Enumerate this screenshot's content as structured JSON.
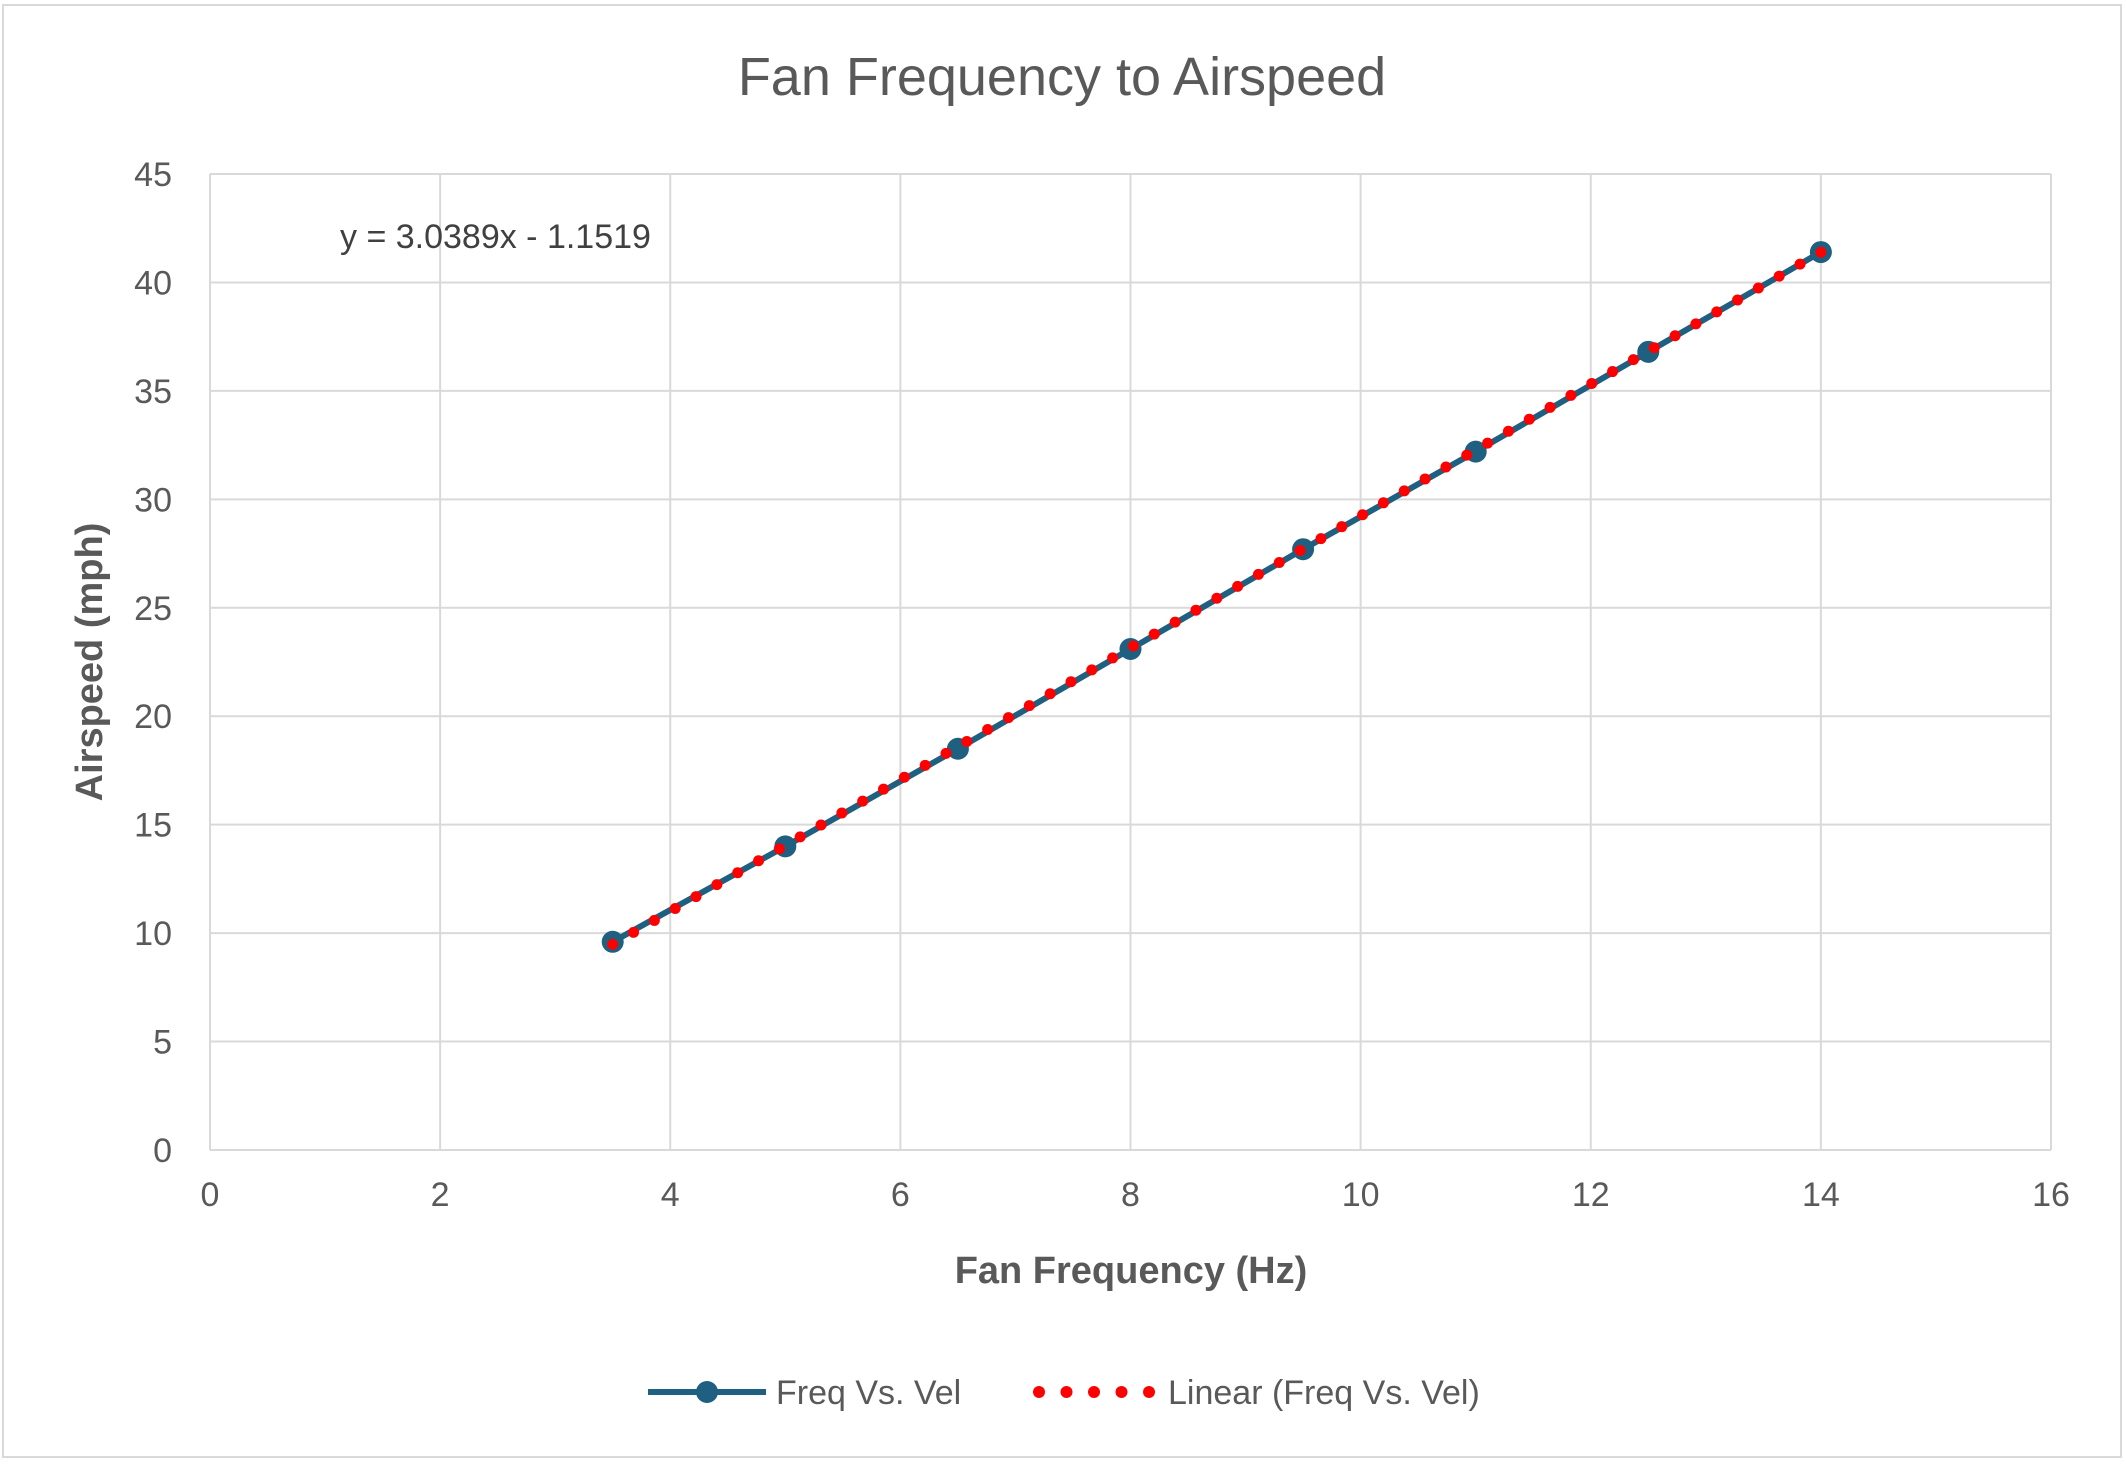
{
  "chart_data": {
    "type": "line",
    "title": "Fan Frequency to Airspeed",
    "xlabel": "Fan Frequency (Hz)",
    "ylabel": "Airspeed (mph)",
    "xlim": [
      0,
      16
    ],
    "ylim": [
      0,
      45
    ],
    "x_ticks": [
      0,
      2,
      4,
      6,
      8,
      10,
      12,
      14,
      16
    ],
    "y_ticks": [
      0,
      5,
      10,
      15,
      20,
      25,
      30,
      35,
      40,
      45
    ],
    "grid": true,
    "legend_position": "bottom",
    "series": [
      {
        "name": "Freq Vs. Vel",
        "x": [
          3.5,
          5,
          6.5,
          8,
          9.5,
          11,
          12.5,
          14
        ],
        "values": [
          9.6,
          14.0,
          18.5,
          23.1,
          27.7,
          32.2,
          36.8,
          41.4
        ],
        "color": "#1f5f80",
        "marker": "circle"
      }
    ],
    "trendline": {
      "name": "Linear (Freq Vs. Vel)",
      "type": "linear",
      "slope": 3.0389,
      "intercept": -1.1519,
      "x_range": [
        3.5,
        14
      ],
      "color": "#ff0000",
      "style": "dotted"
    },
    "annotations": [
      {
        "text": "y = 3.0389x - 1.1519"
      }
    ],
    "colors": {
      "grid": "#d9d9d9",
      "text": "#595959",
      "border": "#d9d9d9"
    }
  }
}
